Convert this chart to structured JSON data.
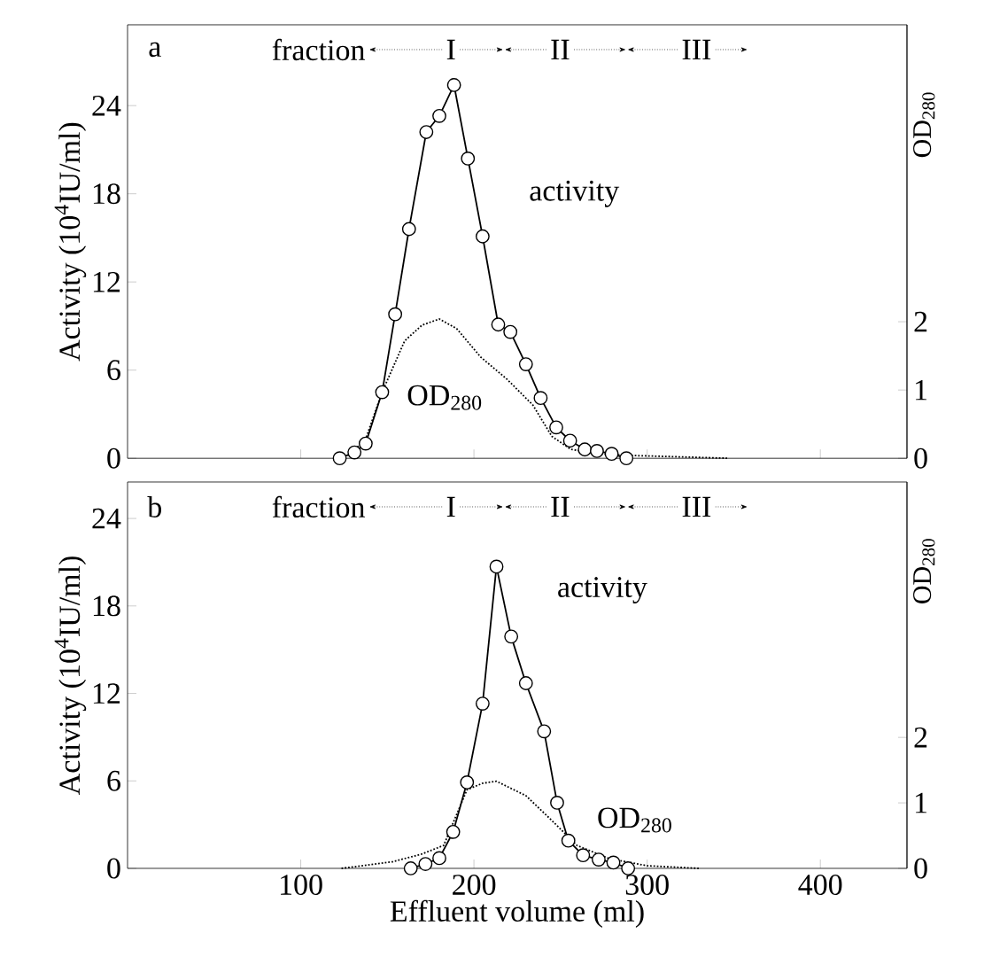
{
  "chart_data": [
    {
      "type": "line",
      "ylabel": "Activity (10$^{4}$IU/ml)",
      "y2label": "OD$_{280}$",
      "annotations": [
        "a",
        "fraction",
        "I",
        "II",
        "III",
        "activity",
        "OD$_{280}$"
      ],
      "series": [
        {
          "color": "#000000",
          "marker": "circle",
          "line_style": "solid",
          "x": [
            122.5,
            131,
            137.5,
            147,
            154.5,
            162.5,
            172.5,
            180,
            188.5,
            196.5,
            205,
            214,
            221,
            230,
            238.5,
            247.5,
            255.5,
            264,
            271,
            279.5,
            288
          ],
          "values": [
            0,
            0.4,
            1.0,
            4.5,
            9.8,
            15.6,
            22.2,
            23.3,
            25.4,
            20.4,
            15.1,
            9.1,
            8.6,
            6.4,
            4.1,
            2.1,
            1.2,
            0.6,
            0.5,
            0.3,
            0
          ]
        },
        {
          "color": "#000000",
          "marker": "none",
          "line_style": "dotted",
          "axis": "y2",
          "x": [
            129,
            138,
            147,
            160,
            170,
            180,
            190,
            204,
            219,
            234,
            245,
            256,
            275,
            292,
            320,
            347
          ],
          "values": [
            0.05,
            0.32,
            0.97,
            1.72,
            1.95,
            2.04,
            1.9,
            1.48,
            1.16,
            0.78,
            0.32,
            0.13,
            0.06,
            0.04,
            0.02,
            0
          ]
        }
      ],
      "xlim": [
        0,
        450
      ],
      "xticks": [
        100,
        200,
        300,
        400
      ],
      "ylim": [
        0,
        29.5
      ],
      "yticks": [
        0,
        6,
        12,
        18,
        24
      ],
      "y2lim": [
        0,
        6.35
      ],
      "y2ticks": [
        0,
        1,
        2
      ],
      "tick_labels": "y"
    },
    {
      "type": "line",
      "xlabel": "Effluent volume (ml)",
      "ylabel": "Activity (10$^{4}$IU/ml)",
      "y2label": "OD$_{280}$",
      "annotations": [
        "b",
        "fraction",
        "I",
        "II",
        "III",
        "activity",
        "OD$_{280}$"
      ],
      "series": [
        {
          "color": "#000000",
          "marker": "circle",
          "line_style": "solid",
          "x": [
            163.5,
            172,
            180,
            188,
            196,
            205,
            213,
            221.5,
            230,
            240.5,
            248,
            254.5,
            263,
            272,
            280.5,
            289
          ],
          "values": [
            0,
            0.3,
            0.7,
            2.5,
            5.9,
            11.3,
            20.7,
            15.9,
            12.7,
            9.4,
            4.5,
            1.9,
            0.9,
            0.6,
            0.4,
            0
          ]
        },
        {
          "color": "#000000",
          "marker": "none",
          "line_style": "dotted",
          "axis": "y2",
          "x": [
            123.5,
            153,
            170,
            182.5,
            196,
            205,
            213,
            230,
            245,
            259.5,
            278,
            300,
            330
          ],
          "values": [
            0,
            0.1,
            0.22,
            0.35,
            1.2,
            1.3,
            1.33,
            1.11,
            0.73,
            0.35,
            0.15,
            0.04,
            0
          ]
        }
      ],
      "xlim": [
        0,
        450
      ],
      "xticks": [
        100,
        200,
        300,
        400
      ],
      "ylim": [
        0,
        26.5
      ],
      "yticks": [
        0,
        6,
        12,
        18,
        24
      ],
      "y2lim": [
        0,
        5.9
      ],
      "y2ticks": [
        0,
        1,
        2
      ]
    }
  ]
}
